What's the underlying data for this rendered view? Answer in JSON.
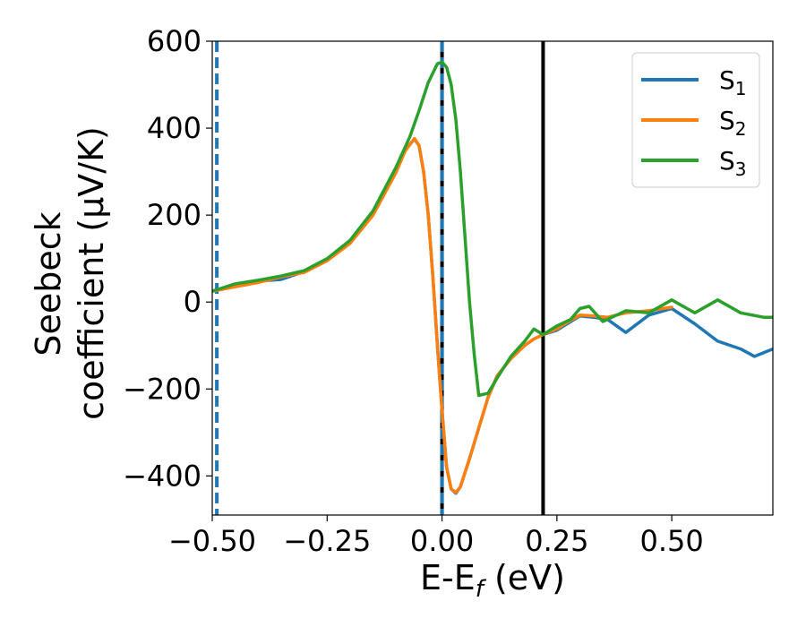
{
  "chart_data": {
    "type": "line",
    "xlabel": "E-E",
    "xlabel_sub": "f",
    "xlabel_unit": " (eV)",
    "ylabel_line1": "Seebeck",
    "ylabel_line2": "coefficient  (μV/K)",
    "xlim": [
      -0.5,
      0.72
    ],
    "ylim": [
      -490,
      600
    ],
    "x_ticks": [
      -0.5,
      -0.25,
      0.0,
      0.25,
      0.5
    ],
    "x_tick_labels": [
      "−0.50",
      "−0.25",
      "0.00",
      "0.25",
      "0.50"
    ],
    "y_ticks": [
      600,
      400,
      200,
      0,
      -200,
      -400
    ],
    "y_tick_labels": [
      "600",
      "400",
      "200",
      "0",
      "−200",
      "−400"
    ],
    "grid": false,
    "legend_position": "top-right",
    "vlines": [
      {
        "x": -0.49,
        "style": "dashed",
        "color": "#1f77b4"
      },
      {
        "x": 0.0,
        "style": "solid",
        "color": "#000000"
      },
      {
        "x": 0.0,
        "style": "dashed",
        "color": "#1f77b4"
      },
      {
        "x": 0.22,
        "style": "solid",
        "color": "#000000"
      }
    ],
    "series": [
      {
        "name": "S",
        "name_sub": "1",
        "color": "#1f77b4",
        "x": [
          -0.5,
          -0.45,
          -0.4,
          -0.35,
          -0.3,
          -0.25,
          -0.2,
          -0.15,
          -0.1,
          -0.08,
          -0.06,
          -0.05,
          -0.04,
          -0.03,
          -0.02,
          -0.01,
          0.0,
          0.01,
          0.02,
          0.03,
          0.04,
          0.06,
          0.08,
          0.1,
          0.12,
          0.15,
          0.18,
          0.2,
          0.22,
          0.25,
          0.28,
          0.3,
          0.33,
          0.36,
          0.4,
          0.45,
          0.5,
          0.55,
          0.6,
          0.65,
          0.68,
          0.72
        ],
        "y": [
          25,
          40,
          48,
          52,
          70,
          98,
          140,
          205,
          300,
          350,
          375,
          360,
          300,
          200,
          60,
          -100,
          -250,
          -380,
          -430,
          -440,
          -425,
          -360,
          -290,
          -220,
          -170,
          -130,
          -100,
          -85,
          -75,
          -65,
          -45,
          -32,
          -35,
          -40,
          -70,
          -30,
          -15,
          -50,
          -90,
          -108,
          -125,
          -108
        ]
      },
      {
        "name": "S",
        "name_sub": "2",
        "color": "#ff7f0e",
        "x": [
          -0.5,
          -0.45,
          -0.4,
          -0.35,
          -0.3,
          -0.25,
          -0.2,
          -0.15,
          -0.1,
          -0.08,
          -0.06,
          -0.05,
          -0.04,
          -0.03,
          -0.02,
          -0.01,
          0.0,
          0.01,
          0.02,
          0.03,
          0.04,
          0.06,
          0.08,
          0.1,
          0.12,
          0.15,
          0.18,
          0.2,
          0.22,
          0.25,
          0.28,
          0.3,
          0.33,
          0.36,
          0.4,
          0.45,
          0.5
        ],
        "y": [
          25,
          35,
          45,
          58,
          68,
          95,
          135,
          200,
          298,
          348,
          376,
          360,
          300,
          200,
          60,
          -100,
          -250,
          -380,
          -430,
          -438,
          -425,
          -360,
          -290,
          -220,
          -170,
          -130,
          -100,
          -85,
          -75,
          -62,
          -42,
          -30,
          -32,
          -35,
          -25,
          -20,
          -12
        ]
      },
      {
        "name": "S",
        "name_sub": "3",
        "color": "#2ca02c",
        "x": [
          -0.5,
          -0.45,
          -0.4,
          -0.35,
          -0.3,
          -0.25,
          -0.2,
          -0.15,
          -0.1,
          -0.07,
          -0.05,
          -0.03,
          -0.01,
          0.0,
          0.01,
          0.02,
          0.03,
          0.04,
          0.05,
          0.06,
          0.07,
          0.08,
          0.1,
          0.12,
          0.15,
          0.18,
          0.2,
          0.22,
          0.25,
          0.28,
          0.3,
          0.32,
          0.35,
          0.4,
          0.45,
          0.5,
          0.55,
          0.6,
          0.65,
          0.7,
          0.72
        ],
        "y": [
          25,
          42,
          50,
          60,
          72,
          100,
          142,
          210,
          310,
          380,
          440,
          505,
          548,
          552,
          540,
          500,
          420,
          300,
          150,
          0,
          -120,
          -215,
          -210,
          -175,
          -125,
          -90,
          -62,
          -75,
          -55,
          -40,
          -15,
          -10,
          -45,
          -20,
          -25,
          5,
          -25,
          5,
          -25,
          -35,
          -35
        ]
      }
    ]
  }
}
